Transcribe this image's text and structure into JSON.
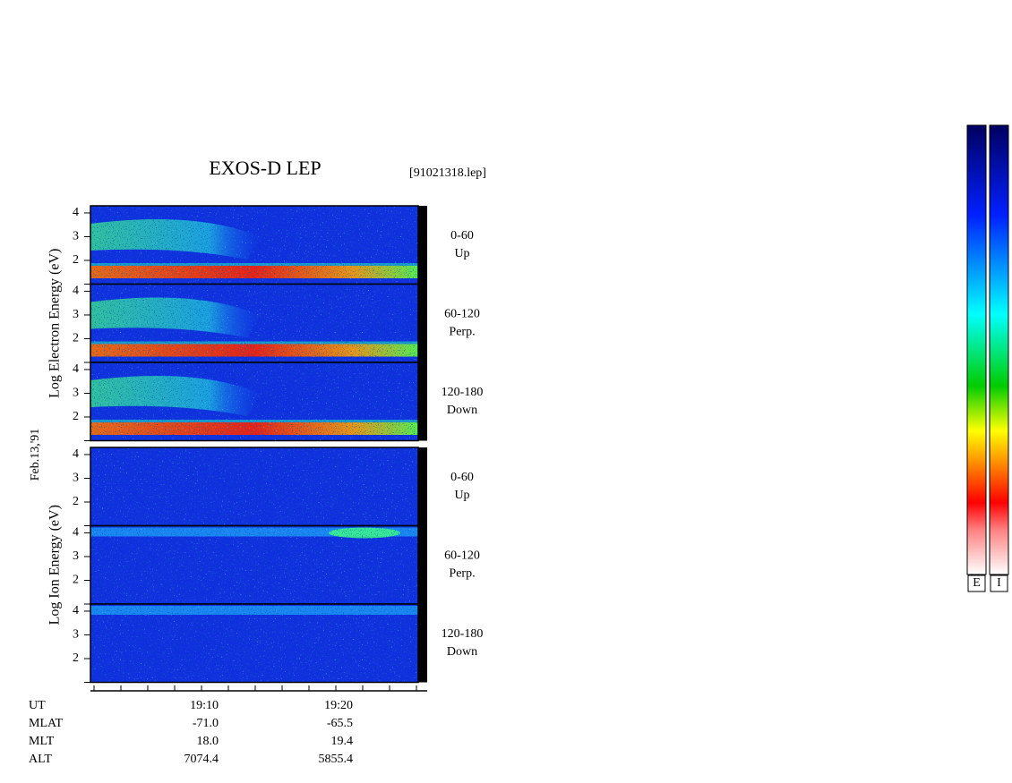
{
  "title": "EXOS-D LEP",
  "file": "[91021318.lep]",
  "date": "Feb.13,'91",
  "groups": [
    {
      "ylabel": "Log  Electron  Energy (eV)",
      "ylim": [
        1,
        4.3
      ],
      "panels": [
        {
          "angle": "0-60",
          "direction": "Up",
          "yticks": [
            2,
            3,
            4
          ]
        },
        {
          "angle": "60-120",
          "direction": "Perp.",
          "yticks": [
            2,
            3,
            4
          ]
        },
        {
          "angle": "120-180",
          "direction": "Down",
          "yticks": [
            2,
            3,
            4
          ]
        }
      ]
    },
    {
      "ylabel": "Log  Ion  Energy (eV)",
      "ylim": [
        1,
        4.3
      ],
      "panels": [
        {
          "angle": "0-60",
          "direction": "Up",
          "yticks": [
            2,
            3,
            4
          ]
        },
        {
          "angle": "60-120",
          "direction": "Perp.",
          "yticks": [
            2,
            3,
            4
          ]
        },
        {
          "angle": "120-180",
          "direction": "Down",
          "yticks": [
            2,
            3,
            4
          ]
        }
      ]
    }
  ],
  "ephemeris": [
    {
      "name": "UT",
      "values": [
        "19:10",
        "19:20"
      ]
    },
    {
      "name": "MLAT",
      "values": [
        "-71.0",
        "-65.5"
      ]
    },
    {
      "name": "MLT",
      "values": [
        "18.0",
        "19.4"
      ]
    },
    {
      "name": "ALT",
      "values": [
        "7074.4",
        "5855.4"
      ]
    }
  ],
  "colorbar_labels": [
    "E",
    "I"
  ]
}
